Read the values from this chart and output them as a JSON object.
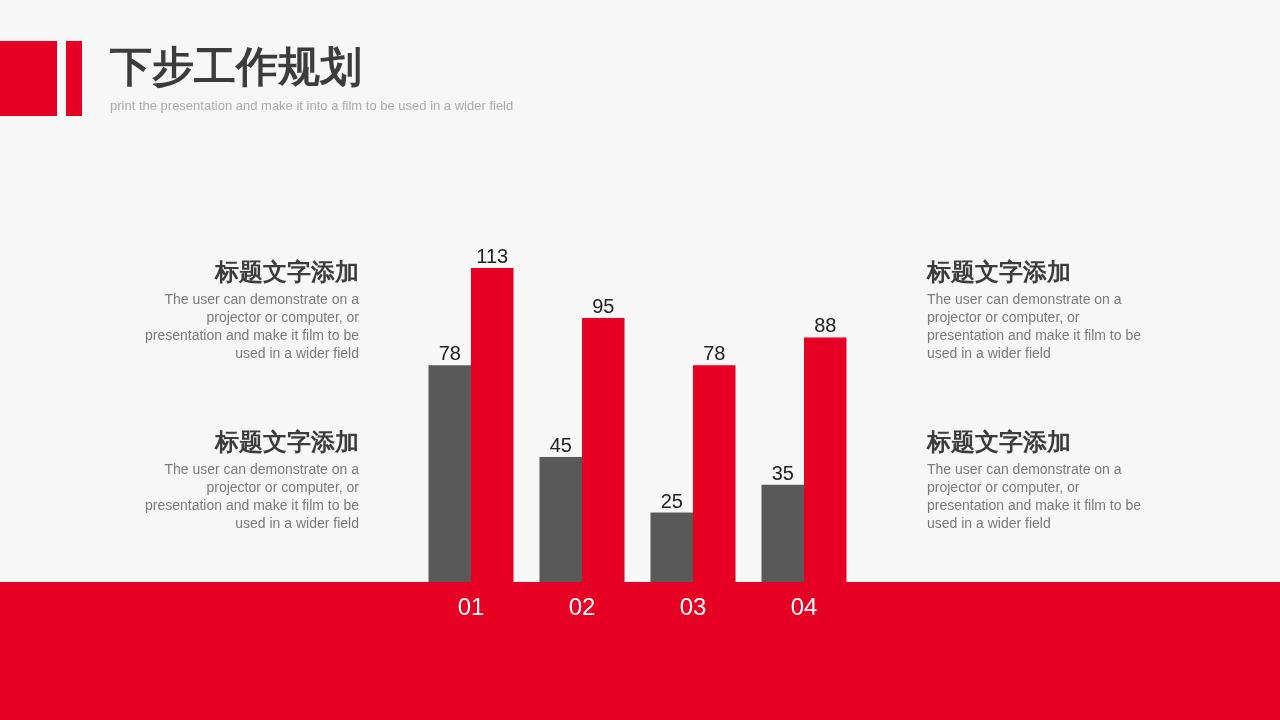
{
  "chart_data": {
    "type": "bar",
    "title": "下步工作规划",
    "subtitle": "print the presentation and make it into a film to be used in a wider field",
    "categories": [
      "01",
      "02",
      "03",
      "04"
    ],
    "series": [
      {
        "color": "#595959",
        "values": [
          78,
          45,
          25,
          35
        ]
      },
      {
        "color": "#e60023",
        "values": [
          113,
          95,
          78,
          88
        ]
      }
    ],
    "data_labels": true,
    "annotations": [
      "标题文字添加",
      "The user can demonstrate on a projector or computer, or presentation and make it film to be used in a wider field",
      "标题文字添加",
      "The user can demonstrate on a projector or computer, or presentation and make it film to be used in a wider field",
      "标题文字添加",
      "The user can demonstrate on a projector or computer, or presentation and make it film to be used in a wider field",
      "标题文字添加",
      "The user can demonstrate on a projector or computer, or presentation and make it film to be used in a wider field"
    ]
  }
}
